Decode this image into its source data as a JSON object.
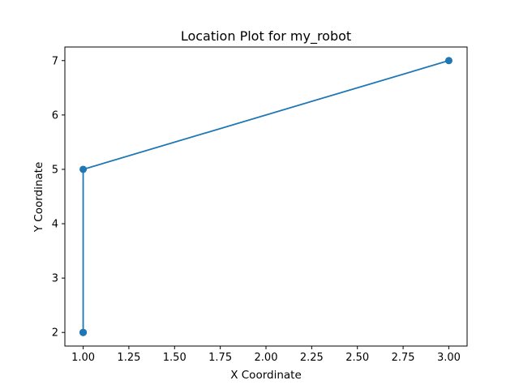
{
  "chart_data": {
    "type": "line",
    "title": "Location Plot for my_robot",
    "xlabel": "X Coordinate",
    "ylabel": "Y Coordinate",
    "series": [
      {
        "x": [
          1,
          1,
          1,
          1,
          3
        ],
        "y": [
          2,
          2,
          2,
          5,
          7
        ],
        "color": "#1f77b4",
        "marker": "circle"
      }
    ],
    "xlim": [
      0.9,
      3.1
    ],
    "ylim": [
      1.75,
      7.25
    ],
    "xticks": [
      1.0,
      1.25,
      1.5,
      1.75,
      2.0,
      2.25,
      2.5,
      2.75,
      3.0
    ],
    "xtick_labels": [
      "1.00",
      "1.25",
      "1.50",
      "1.75",
      "2.00",
      "2.25",
      "2.50",
      "2.75",
      "3.00"
    ],
    "yticks": [
      2,
      3,
      4,
      5,
      6,
      7
    ],
    "ytick_labels": [
      "2",
      "3",
      "4",
      "5",
      "6",
      "7"
    ],
    "grid": false,
    "legend": "none"
  }
}
